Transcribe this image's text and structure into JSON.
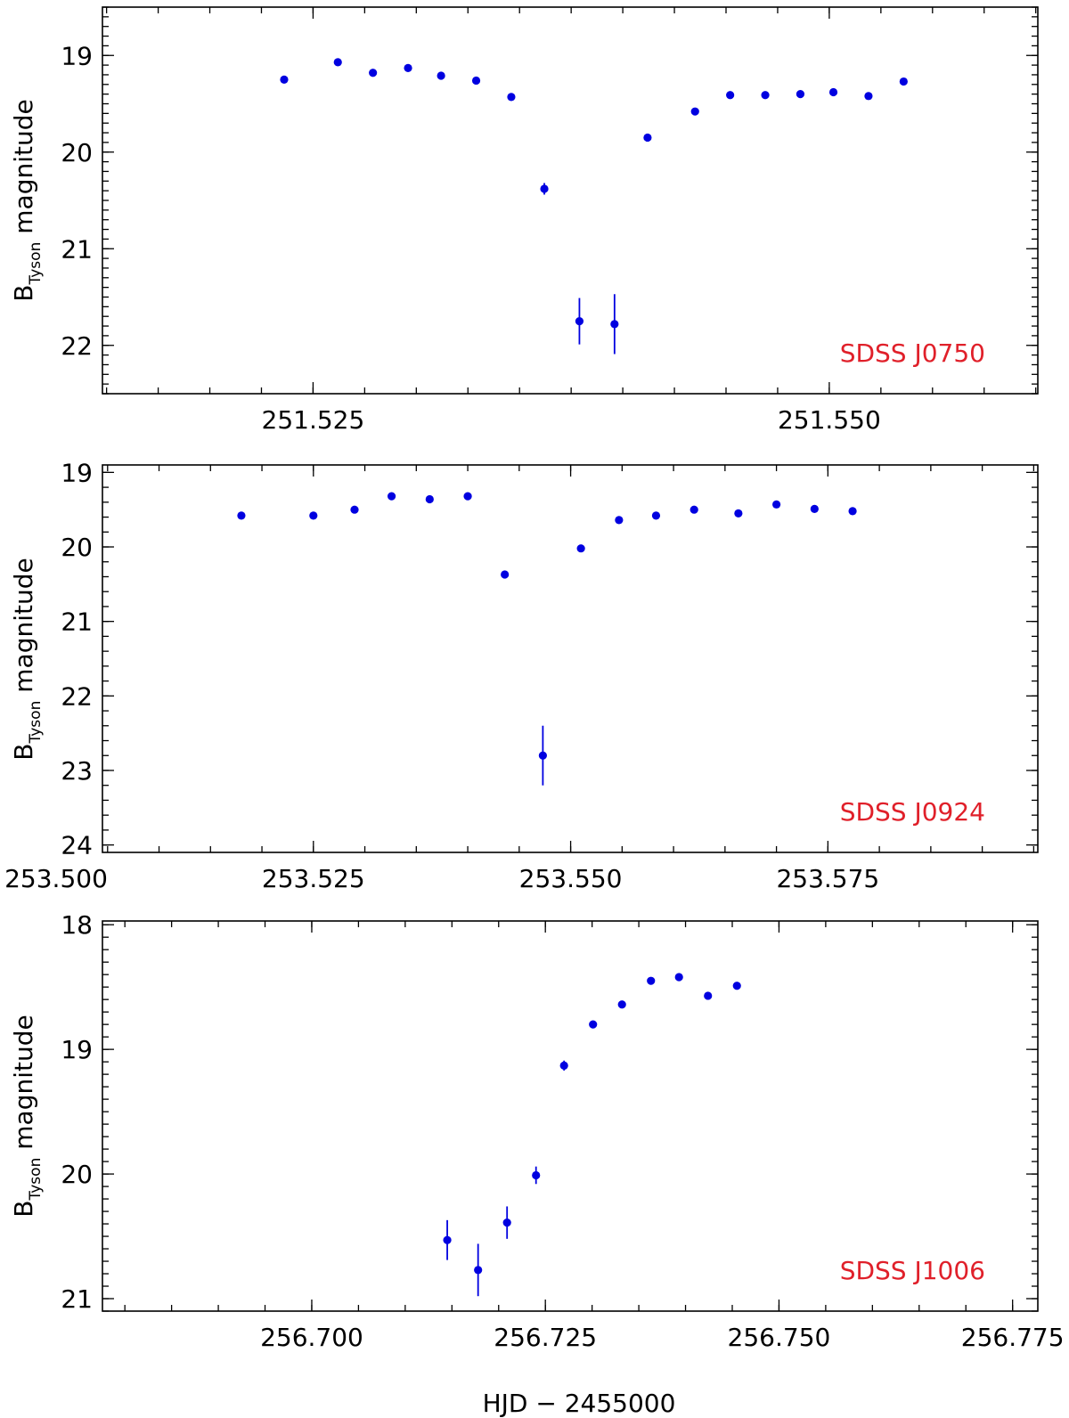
{
  "figure": {
    "xlabel": "HJD − 2455000",
    "ylabel_main": "B",
    "ylabel_sub": "Tyson",
    "ylabel_rest": "magnitude",
    "point_color": "#0000e0",
    "label_color": "#e0202a"
  },
  "chart_data": [
    {
      "type": "scatter",
      "label": "SDSS J0750",
      "xlabel": "",
      "ylabel": "B_Tyson magnitude",
      "xlim": [
        251.5148,
        251.5601
      ],
      "ylim": [
        22.5,
        18.5
      ],
      "y_inverted": true,
      "x_ticks": [
        251.525,
        251.55
      ],
      "x_tick_labels": [
        "251.525",
        "251.550"
      ],
      "x_minor_step": 0.0025,
      "y_ticks": [
        19,
        20,
        21,
        22
      ],
      "y_tick_labels": [
        "19",
        "20",
        "21",
        "22"
      ],
      "y_minor_step": 0.1,
      "x": [
        251.5236,
        251.5262,
        251.5279,
        251.5296,
        251.5312,
        251.5329,
        251.5346,
        251.5362,
        251.5379,
        251.5396,
        251.5412,
        251.5435,
        251.5452,
        251.5469,
        251.5486,
        251.5502,
        251.5519,
        251.5536
      ],
      "y": [
        19.25,
        19.07,
        19.18,
        19.13,
        19.21,
        19.26,
        19.43,
        20.38,
        21.75,
        21.78,
        19.85,
        19.58,
        19.41,
        19.41,
        19.4,
        19.38,
        19.42,
        19.27
      ],
      "yerr": [
        0.02,
        0.02,
        0.02,
        0.02,
        0.02,
        0.02,
        0.03,
        0.06,
        0.24,
        0.31,
        0.03,
        0.03,
        0.02,
        0.02,
        0.02,
        0.02,
        0.02,
        0.02
      ]
    },
    {
      "type": "scatter",
      "label": "SDSS J0924",
      "xlabel": "",
      "ylabel": "B_Tyson magnitude",
      "xlim": [
        253.5045,
        253.5954
      ],
      "ylim": [
        24.1,
        18.9
      ],
      "y_inverted": true,
      "x_ticks": [
        253.5,
        253.525,
        253.55,
        253.575
      ],
      "x_tick_labels": [
        "253.500",
        "253.525",
        "253.550",
        "253.575"
      ],
      "x_minor_step": 0.005,
      "y_ticks": [
        19,
        20,
        21,
        22,
        23,
        24
      ],
      "y_tick_labels": [
        "19",
        "20",
        "21",
        "22",
        "23",
        "24"
      ],
      "y_minor_step": 0.2,
      "x": [
        253.518,
        253.525,
        253.529,
        253.5326,
        253.5363,
        253.54,
        253.5436,
        253.5473,
        253.551,
        253.5547,
        253.5583,
        253.562,
        253.5663,
        253.57,
        253.5737,
        253.5774
      ],
      "y": [
        19.58,
        19.58,
        19.5,
        19.32,
        19.36,
        19.32,
        20.37,
        22.8,
        20.02,
        19.64,
        19.58,
        19.5,
        19.55,
        19.43,
        19.49,
        19.52
      ],
      "yerr": [
        0.02,
        0.02,
        0.02,
        0.02,
        0.02,
        0.02,
        0.03,
        0.4,
        0.03,
        0.02,
        0.02,
        0.02,
        0.02,
        0.02,
        0.02,
        0.02
      ]
    },
    {
      "type": "scatter",
      "label": "SDSS J1006",
      "xlabel": "HJD − 2455000",
      "ylabel": "B_Tyson magnitude",
      "xlim": [
        256.6776,
        256.7777
      ],
      "ylim": [
        21.1,
        17.97
      ],
      "y_inverted": true,
      "x_ticks": [
        256.7,
        256.725,
        256.75,
        256.775
      ],
      "x_tick_labels": [
        "256.700",
        "256.725",
        "256.750",
        "256.775"
      ],
      "x_minor_step": 0.005,
      "y_ticks": [
        18,
        19,
        20,
        21
      ],
      "y_tick_labels": [
        "18",
        "19",
        "20",
        "21"
      ],
      "y_minor_step": 0.1,
      "x": [
        256.7145,
        256.7178,
        256.7209,
        256.724,
        256.727,
        256.7301,
        256.7332,
        256.7363,
        256.7393,
        256.7424,
        256.7455
      ],
      "y": [
        20.53,
        20.77,
        20.39,
        20.01,
        19.13,
        18.8,
        18.64,
        18.45,
        18.42,
        18.57,
        18.49
      ],
      "yerr": [
        0.16,
        0.21,
        0.13,
        0.07,
        0.04,
        0.02,
        0.02,
        0.02,
        0.02,
        0.02,
        0.02
      ]
    }
  ]
}
